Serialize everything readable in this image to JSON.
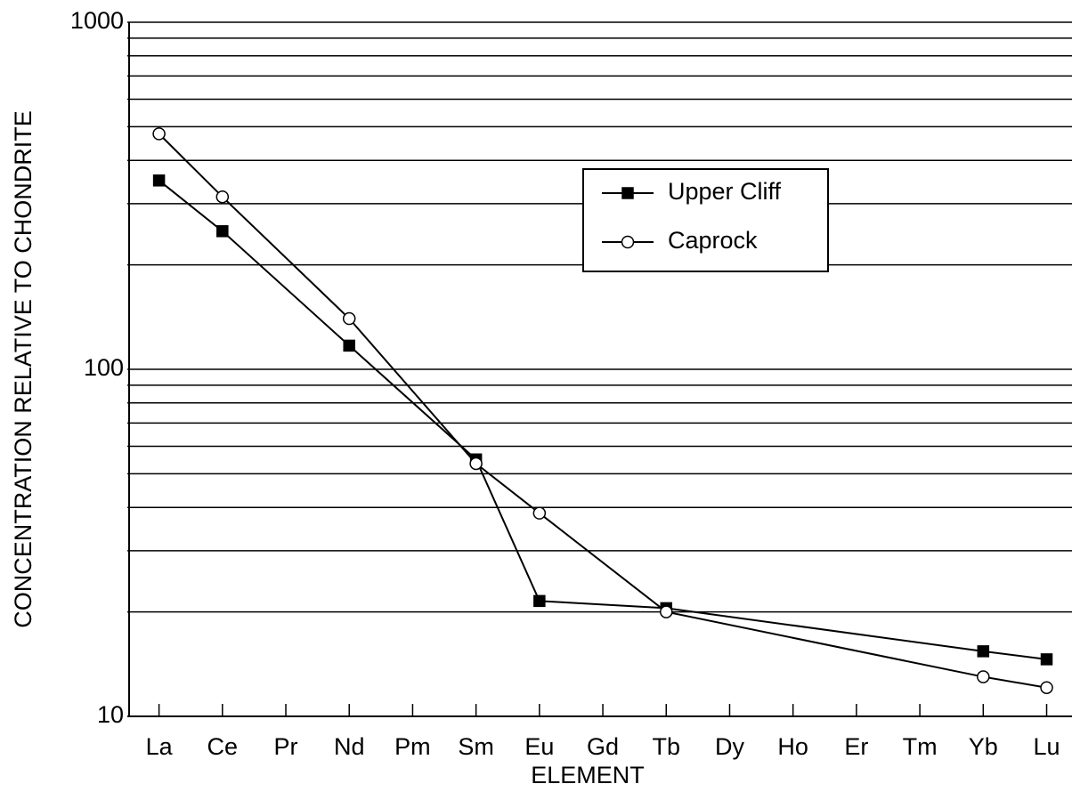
{
  "chart_data": {
    "type": "line",
    "xlabel": "ELEMENT",
    "ylabel": "CONCENTRATION RELATIVE TO CHONDRITE",
    "x": [
      1,
      2,
      4,
      6,
      7,
      9,
      14,
      15
    ],
    "xlim": [
      0.5,
      15.4
    ],
    "xticks": [
      {
        "value": 1,
        "label": "La"
      },
      {
        "value": 2,
        "label": "Ce"
      },
      {
        "value": 3,
        "label": "Pr"
      },
      {
        "value": 4,
        "label": "Nd"
      },
      {
        "value": 5,
        "label": "Pm"
      },
      {
        "value": 6,
        "label": "Sm"
      },
      {
        "value": 7,
        "label": "Eu"
      },
      {
        "value": 8,
        "label": "Gd"
      },
      {
        "value": 9,
        "label": "Tb"
      },
      {
        "value": 10,
        "label": "Dy"
      },
      {
        "value": 11,
        "label": "Ho"
      },
      {
        "value": 12,
        "label": "Er"
      },
      {
        "value": 13,
        "label": "Tm"
      },
      {
        "value": 14,
        "label": "Yb"
      },
      {
        "value": 15,
        "label": "Lu"
      }
    ],
    "ylim": [
      10,
      1000
    ],
    "yscale": "log",
    "yticks": [
      10,
      100,
      1000
    ],
    "yminor": [
      20,
      30,
      40,
      50,
      60,
      70,
      80,
      90,
      200,
      300,
      400,
      500,
      600,
      700,
      800,
      900
    ],
    "grid": true,
    "series": [
      {
        "name": "Upper Cliff",
        "color": "#000000",
        "marker": "square",
        "marker_fill": "#000000",
        "values": [
          350,
          250,
          117,
          55,
          21.5,
          20.5,
          15.4,
          14.6
        ]
      },
      {
        "name": "Caprock",
        "color": "#000000",
        "marker": "circle",
        "marker_fill": "#ffffff",
        "values": [
          477,
          314,
          140,
          53.5,
          38.5,
          20,
          13,
          12.1
        ]
      }
    ]
  }
}
